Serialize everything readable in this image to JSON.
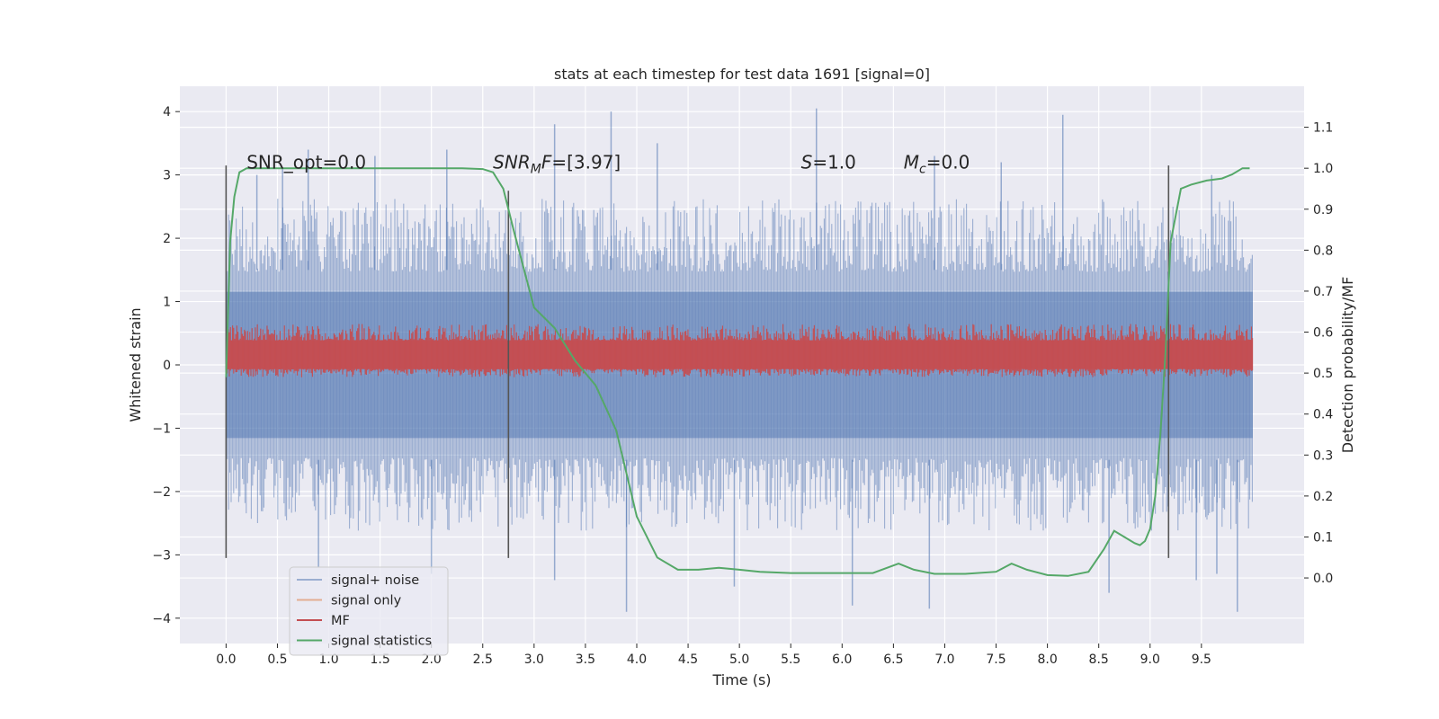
{
  "chart_data": {
    "type": "line",
    "title": "stats at each timestep for test data 1691 [signal=0]",
    "xlabel": "Time (s)",
    "ylabel": "Whitened strain",
    "y2label": "Detection probability/MF",
    "xlim": [
      -0.45,
      10.5
    ],
    "ylim": [
      -4.4,
      4.4
    ],
    "y2lim": [
      -0.16,
      1.2
    ],
    "xticks": [
      0.0,
      0.5,
      1.0,
      1.5,
      2.0,
      2.5,
      3.0,
      3.5,
      4.0,
      4.5,
      5.0,
      5.5,
      6.0,
      6.5,
      7.0,
      7.5,
      8.0,
      8.5,
      9.0,
      9.5
    ],
    "xtick_labels": [
      "0.0",
      "0.5",
      "1.0",
      "1.5",
      "2.0",
      "2.5",
      "3.0",
      "3.5",
      "4.0",
      "4.5",
      "5.0",
      "5.5",
      "6.0",
      "6.5",
      "7.0",
      "7.5",
      "8.0",
      "8.5",
      "9.0",
      "9.5"
    ],
    "yticks": [
      -4,
      -3,
      -2,
      -1,
      0,
      1,
      2,
      3,
      4
    ],
    "ytick_labels": [
      "−4",
      "−3",
      "−2",
      "−1",
      "0",
      "1",
      "2",
      "3",
      "4"
    ],
    "y2ticks": [
      0.0,
      0.1,
      0.2,
      0.3,
      0.4,
      0.5,
      0.6,
      0.7,
      0.8,
      0.9,
      1.0,
      1.1
    ],
    "y2tick_labels": [
      "0.0",
      "0.1",
      "0.2",
      "0.3",
      "0.4",
      "0.5",
      "0.6",
      "0.7",
      "0.8",
      "0.9",
      "1.0",
      "1.1"
    ],
    "grid": true,
    "legend_position": "lower-left",
    "background": "#eaeaf2",
    "annotations": [
      {
        "text": "SNR_opt=0.0",
        "x": 0.2,
        "y": 3.1
      },
      {
        "text": "SNR_MF=[3.97]",
        "x": 2.6,
        "y": 3.1
      },
      {
        "text": "S=1.0",
        "x": 5.6,
        "y": 3.1
      },
      {
        "text": "M_c=0.0",
        "x": 6.6,
        "y": 3.1
      }
    ],
    "vlines": [
      {
        "x": 0.0,
        "ymin": -3.05,
        "ymax": 3.15
      },
      {
        "x": 2.75,
        "ymin": -3.05,
        "ymax": 2.75
      },
      {
        "x": 9.18,
        "ymin": -3.05,
        "ymax": 3.15
      }
    ],
    "series": [
      {
        "name": "signal+ noise",
        "color": "#4c72b0",
        "alpha": 0.5,
        "axis": "left",
        "x_range": [
          0.0,
          10.0
        ],
        "envelope_upper": 2.1,
        "envelope_lower": -2.1,
        "spikes": [
          {
            "x": 0.3,
            "y": 3.0
          },
          {
            "x": 0.55,
            "y": 3.1
          },
          {
            "x": 0.8,
            "y": 3.4
          },
          {
            "x": 1.45,
            "y": 3.3
          },
          {
            "x": 2.15,
            "y": 3.4
          },
          {
            "x": 3.2,
            "y": 3.8
          },
          {
            "x": 3.75,
            "y": 4.0
          },
          {
            "x": 4.2,
            "y": 3.5
          },
          {
            "x": 5.75,
            "y": 4.05
          },
          {
            "x": 6.9,
            "y": 3.3
          },
          {
            "x": 7.55,
            "y": 3.2
          },
          {
            "x": 8.15,
            "y": 3.95
          },
          {
            "x": 9.6,
            "y": 3.0
          },
          {
            "x": 0.9,
            "y": -3.2
          },
          {
            "x": 2.0,
            "y": -3.3
          },
          {
            "x": 3.2,
            "y": -3.4
          },
          {
            "x": 3.9,
            "y": -3.9
          },
          {
            "x": 4.95,
            "y": -3.5
          },
          {
            "x": 6.1,
            "y": -3.8
          },
          {
            "x": 6.85,
            "y": -3.85
          },
          {
            "x": 8.6,
            "y": -3.6
          },
          {
            "x": 9.45,
            "y": -3.4
          },
          {
            "x": 9.65,
            "y": -3.3
          },
          {
            "x": 9.85,
            "y": -3.9
          }
        ]
      },
      {
        "name": "signal only",
        "color": "#dd8452",
        "alpha": 0.6,
        "axis": "left",
        "values": [],
        "note_visible": false
      },
      {
        "name": "MF",
        "color": "#c44e52",
        "axis": "right",
        "x_range": [
          0.0,
          10.0
        ],
        "band_lower": 0.51,
        "band_upper": 0.58,
        "noise_min": 0.49,
        "noise_max": 0.62
      },
      {
        "name": "signal statistics",
        "color": "#55a868",
        "axis": "right",
        "x": [
          0.0,
          0.04,
          0.08,
          0.13,
          0.2,
          0.3,
          0.6,
          1.0,
          1.5,
          2.0,
          2.3,
          2.5,
          2.6,
          2.7,
          2.8,
          3.0,
          3.2,
          3.4,
          3.6,
          3.8,
          4.0,
          4.2,
          4.4,
          4.6,
          4.8,
          5.0,
          5.2,
          5.5,
          6.0,
          6.3,
          6.55,
          6.7,
          6.9,
          7.2,
          7.5,
          7.65,
          7.8,
          8.0,
          8.2,
          8.4,
          8.55,
          8.65,
          8.75,
          8.85,
          8.9,
          8.95,
          9.0,
          9.05,
          9.1,
          9.15,
          9.2,
          9.3,
          9.4,
          9.55,
          9.7,
          9.8,
          9.9,
          9.97
        ],
        "y": [
          0.49,
          0.82,
          0.93,
          0.99,
          1.0,
          1.0,
          1.0,
          1.0,
          1.0,
          1.0,
          1.0,
          0.998,
          0.99,
          0.95,
          0.85,
          0.66,
          0.61,
          0.53,
          0.47,
          0.36,
          0.15,
          0.05,
          0.02,
          0.02,
          0.025,
          0.02,
          0.015,
          0.012,
          0.012,
          0.012,
          0.035,
          0.02,
          0.01,
          0.01,
          0.015,
          0.035,
          0.02,
          0.007,
          0.005,
          0.015,
          0.07,
          0.115,
          0.1,
          0.085,
          0.08,
          0.09,
          0.12,
          0.2,
          0.35,
          0.55,
          0.82,
          0.95,
          0.96,
          0.97,
          0.975,
          0.985,
          1.0,
          1.0
        ]
      }
    ]
  }
}
